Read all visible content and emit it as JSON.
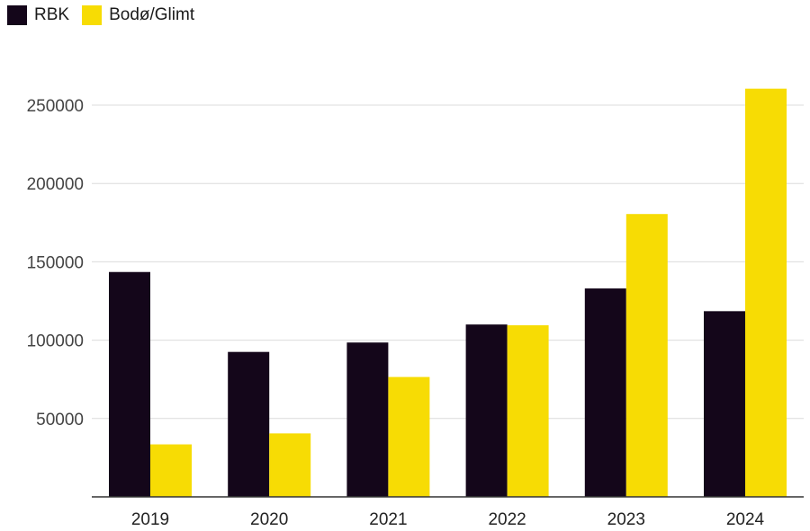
{
  "chart_data": {
    "type": "bar",
    "title": "",
    "xlabel": "",
    "ylabel": "",
    "categories": [
      "2019",
      "2020",
      "2021",
      "2022",
      "2023",
      "2024"
    ],
    "series": [
      {
        "name": "RBK",
        "color": "#14061a",
        "values": [
          143500,
          92500,
          98500,
          110000,
          133000,
          118500
        ]
      },
      {
        "name": "Bodø/Glimt",
        "color": "#f7dc04",
        "values": [
          33500,
          40500,
          76500,
          109500,
          180500,
          260500
        ]
      }
    ],
    "ylim": [
      0,
      270000
    ],
    "yticks": [
      50000,
      100000,
      150000,
      200000,
      250000
    ],
    "ytick_labels": [
      "50000",
      "100000",
      "150000",
      "200000",
      "250000"
    ],
    "grid": true,
    "legend_position": "top-left"
  }
}
